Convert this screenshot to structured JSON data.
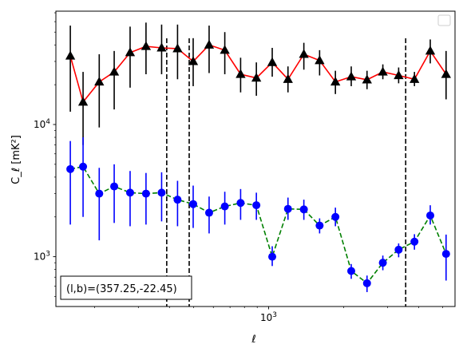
{
  "chart_data": {
    "type": "line",
    "title": "",
    "xlabel": "ℓ",
    "ylabel": "C_ℓ  [mK²]",
    "xscale": "log",
    "yscale": "log",
    "xlim": [
      140,
      5600
    ],
    "ylim": [
      420,
      72000
    ],
    "x_tick_labels": [
      {
        "value": 1000,
        "base": "10",
        "exp": "3"
      }
    ],
    "y_tick_labels": [
      {
        "value": 1000,
        "base": "10",
        "exp": "3"
      },
      {
        "value": 10000,
        "base": "10",
        "exp": "4"
      }
    ],
    "legend": {
      "placement": "top-right",
      "entries": []
    },
    "grid": false,
    "annotation": "(l,b)=(357.25,-22.45)",
    "vertical_lines": [
      {
        "x": 390,
        "style": "dashed",
        "color": "#000000"
      },
      {
        "x": 480,
        "style": "dashed",
        "color": "#000000"
      },
      {
        "x": 3550,
        "style": "dashed",
        "color": "#000000"
      }
    ],
    "series": [
      {
        "line_color": "#ff0000",
        "marker_color": "#000000",
        "error_color": "#000000",
        "line_style": "solid",
        "marker": "triangle",
        "points": [
          {
            "x": 160,
            "y": 33000,
            "lo": 12500,
            "hi": 56000
          },
          {
            "x": 180,
            "y": 14800,
            "lo": 7000,
            "hi": 25000
          },
          {
            "x": 209,
            "y": 21000,
            "lo": 9500,
            "hi": 34000
          },
          {
            "x": 240,
            "y": 25000,
            "lo": 13000,
            "hi": 36000
          },
          {
            "x": 278,
            "y": 35000,
            "lo": 19000,
            "hi": 55000
          },
          {
            "x": 322,
            "y": 39000,
            "lo": 24000,
            "hi": 59000
          },
          {
            "x": 372,
            "y": 38000,
            "lo": 24000,
            "hi": 57000
          },
          {
            "x": 431,
            "y": 37500,
            "lo": 22000,
            "hi": 57000
          },
          {
            "x": 498,
            "y": 30000,
            "lo": 19500,
            "hi": 45000
          },
          {
            "x": 577,
            "y": 40000,
            "lo": 24500,
            "hi": 56000
          },
          {
            "x": 667,
            "y": 36500,
            "lo": 24000,
            "hi": 50000
          },
          {
            "x": 772,
            "y": 24000,
            "lo": 17500,
            "hi": 32000
          },
          {
            "x": 893,
            "y": 22500,
            "lo": 16500,
            "hi": 29500
          },
          {
            "x": 1034,
            "y": 29500,
            "lo": 23000,
            "hi": 38000
          },
          {
            "x": 1196,
            "y": 22000,
            "lo": 17500,
            "hi": 27500
          },
          {
            "x": 1385,
            "y": 34000,
            "lo": 26000,
            "hi": 41500
          },
          {
            "x": 1602,
            "y": 30500,
            "lo": 23500,
            "hi": 36500
          },
          {
            "x": 1854,
            "y": 21000,
            "lo": 17000,
            "hi": 25500
          },
          {
            "x": 2146,
            "y": 23000,
            "lo": 19500,
            "hi": 27500
          },
          {
            "x": 2483,
            "y": 21800,
            "lo": 18500,
            "hi": 25500
          },
          {
            "x": 2874,
            "y": 25000,
            "lo": 22000,
            "hi": 28500
          },
          {
            "x": 3326,
            "y": 23500,
            "lo": 20500,
            "hi": 27000
          },
          {
            "x": 3849,
            "y": 22000,
            "lo": 19500,
            "hi": 25000
          },
          {
            "x": 4455,
            "y": 36000,
            "lo": 29000,
            "hi": 44000
          },
          {
            "x": 5156,
            "y": 24000,
            "lo": 15500,
            "hi": 36000
          }
        ]
      },
      {
        "line_color": "#008000",
        "marker_color": "#0000ff",
        "error_color": "#0000ff",
        "line_style": "dashed",
        "marker": "circle",
        "points": [
          {
            "x": 160,
            "y": 4600,
            "lo": 1750,
            "hi": 7500
          },
          {
            "x": 180,
            "y": 4800,
            "lo": 2000,
            "hi": 8000
          },
          {
            "x": 209,
            "y": 3000,
            "lo": 1330,
            "hi": 4700
          },
          {
            "x": 240,
            "y": 3400,
            "lo": 1800,
            "hi": 5000
          },
          {
            "x": 278,
            "y": 3050,
            "lo": 1700,
            "hi": 4450
          },
          {
            "x": 322,
            "y": 3000,
            "lo": 1750,
            "hi": 4300
          },
          {
            "x": 372,
            "y": 3050,
            "lo": 1850,
            "hi": 4350
          },
          {
            "x": 431,
            "y": 2700,
            "lo": 1700,
            "hi": 3750
          },
          {
            "x": 498,
            "y": 2500,
            "lo": 1650,
            "hi": 3450
          },
          {
            "x": 577,
            "y": 2150,
            "lo": 1500,
            "hi": 2850
          },
          {
            "x": 667,
            "y": 2400,
            "lo": 1750,
            "hi": 3100
          },
          {
            "x": 772,
            "y": 2550,
            "lo": 1900,
            "hi": 3250
          },
          {
            "x": 893,
            "y": 2450,
            "lo": 1900,
            "hi": 3050
          },
          {
            "x": 1034,
            "y": 1000,
            "lo": 850,
            "hi": 1200
          },
          {
            "x": 1196,
            "y": 2300,
            "lo": 1900,
            "hi": 2800
          },
          {
            "x": 1385,
            "y": 2280,
            "lo": 1900,
            "hi": 2700
          },
          {
            "x": 1602,
            "y": 1720,
            "lo": 1500,
            "hi": 1950
          },
          {
            "x": 1854,
            "y": 2000,
            "lo": 1700,
            "hi": 2350
          },
          {
            "x": 2146,
            "y": 780,
            "lo": 680,
            "hi": 880
          },
          {
            "x": 2483,
            "y": 630,
            "lo": 540,
            "hi": 720
          },
          {
            "x": 2874,
            "y": 900,
            "lo": 790,
            "hi": 1020
          },
          {
            "x": 3326,
            "y": 1130,
            "lo": 990,
            "hi": 1260
          },
          {
            "x": 3849,
            "y": 1300,
            "lo": 1130,
            "hi": 1480
          },
          {
            "x": 4455,
            "y": 2050,
            "lo": 1750,
            "hi": 2450
          },
          {
            "x": 5156,
            "y": 1050,
            "lo": 660,
            "hi": 1470
          }
        ]
      }
    ]
  }
}
